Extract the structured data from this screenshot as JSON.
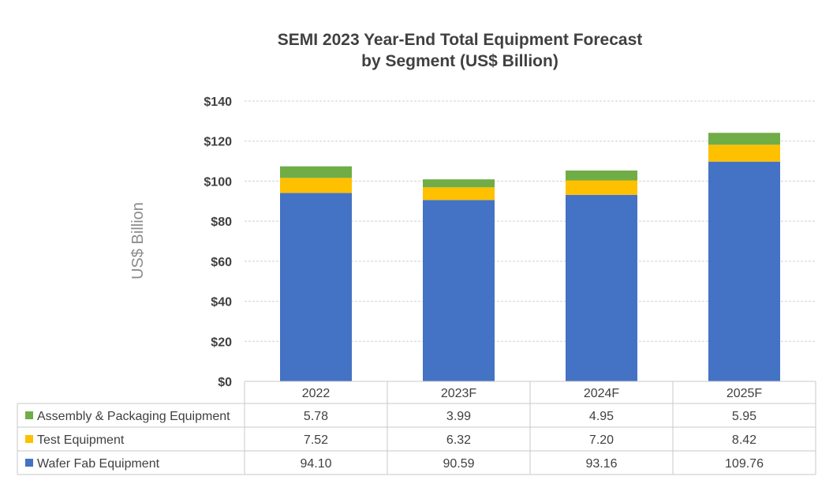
{
  "chart_data": {
    "type": "bar",
    "stacked": true,
    "title": "SEMI 2023 Year-End Total Equipment Forecast",
    "subtitle": "by Segment (US$ Billion)",
    "ylabel": "US$ Billion",
    "xlabel": "",
    "ylim": [
      0,
      140
    ],
    "yticks": [
      "$0",
      "$20",
      "$40",
      "$60",
      "$80",
      "$100",
      "$120",
      "$140"
    ],
    "ytick_values": [
      0,
      20,
      40,
      60,
      80,
      100,
      120,
      140
    ],
    "grid": true,
    "legend_placement": "data-table-left",
    "categories": [
      "2022",
      "2023F",
      "2024F",
      "2025F"
    ],
    "series": [
      {
        "name": "Assembly & Packaging Equipment",
        "color": "#70AD47",
        "values": [
          5.78,
          3.99,
          4.95,
          5.95
        ],
        "labels": [
          "5.78",
          "3.99",
          "4.95",
          "5.95"
        ]
      },
      {
        "name": "Test Equipment",
        "color": "#FFC000",
        "values": [
          7.52,
          6.32,
          7.2,
          8.42
        ],
        "labels": [
          "7.52",
          "6.32",
          "7.20",
          "8.42"
        ]
      },
      {
        "name": "Wafer Fab Equipment",
        "color": "#4472C4",
        "values": [
          94.1,
          90.59,
          93.16,
          109.76
        ],
        "labels": [
          "94.10",
          "90.59",
          "93.16",
          "109.76"
        ]
      }
    ]
  }
}
